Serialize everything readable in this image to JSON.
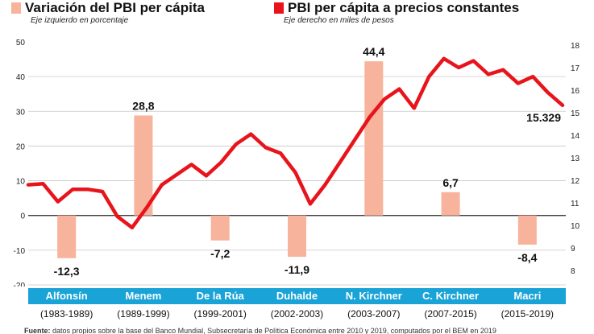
{
  "legend": {
    "left_title": "Variación del PBI per cápita",
    "left_subtitle": "Eje izquierdo en porcentaje",
    "right_title": "PBI per cápita a precios constantes",
    "right_subtitle": "Eje derecho en miles de pesos"
  },
  "colors": {
    "bar": "#f7b39c",
    "line": "#e8141c",
    "band": "#1aa3d6",
    "grid": "#c8c8c8"
  },
  "presidencies": [
    {
      "name": "Alfonsín",
      "period": "(1983-1989)"
    },
    {
      "name": "Menem",
      "period": "(1989-1999)"
    },
    {
      "name": "De la Rúa",
      "period": "(1999-2001)"
    },
    {
      "name": "Duhalde",
      "period": "(2002-2003)"
    },
    {
      "name": "N. Kirchner",
      "period": "(2003-2007)"
    },
    {
      "name": "C. Kirchner",
      "period": "(2007-2015)"
    },
    {
      "name": "Macri",
      "period": "(2015-2019)"
    }
  ],
  "footer": {
    "label": "Fuente:",
    "text": "datos propios sobre la base del Banco Mundial, Subsecretaría de Política Económica entre 2010 y 2019, computados por el BEM en 2019"
  },
  "chart_data": {
    "type": "bar",
    "categories": [
      "Alfonsín",
      "Menem",
      "De la Rúa",
      "Duhalde",
      "N. Kirchner",
      "C. Kirchner",
      "Macri"
    ],
    "bar_labels": [
      "-12,3",
      "28,8",
      "-7,2",
      "-11,9",
      "44,4",
      "6,7",
      "-8,4"
    ],
    "left_axis": {
      "ticks": [
        -20,
        -10,
        0,
        10,
        20,
        30,
        40,
        50
      ],
      "ylim": [
        -20,
        50
      ]
    },
    "right_axis": {
      "ticks": [
        8,
        9,
        10,
        11,
        12,
        13,
        14,
        15,
        16,
        17,
        18
      ],
      "ylim": [
        8,
        18
      ]
    },
    "series": [
      {
        "name": "Variación del PBI per cápita",
        "type": "bar",
        "axis": "left",
        "values": [
          -12.3,
          28.8,
          -7.2,
          -11.9,
          44.4,
          6.7,
          -8.4
        ]
      },
      {
        "name": "PBI per cápita a precios constantes",
        "type": "line",
        "axis": "right",
        "x": [
          1983,
          1984,
          1985,
          1986,
          1987,
          1988,
          1989,
          1990,
          1991,
          1992,
          1993,
          1994,
          1995,
          1996,
          1997,
          1998,
          1999,
          2000,
          2001,
          2002,
          2003,
          2004,
          2005,
          2006,
          2007,
          2008,
          2009,
          2010,
          2011,
          2012,
          2013,
          2014,
          2015,
          2016,
          2017,
          2018,
          2019
        ],
        "values": [
          11.8,
          11.85,
          11.05,
          11.6,
          11.6,
          11.5,
          10.4,
          9.9,
          10.8,
          11.8,
          12.25,
          12.7,
          12.2,
          12.8,
          13.6,
          14.05,
          13.45,
          13.2,
          12.35,
          10.95,
          11.8,
          12.8,
          13.8,
          14.8,
          15.6,
          16.05,
          15.2,
          16.6,
          17.4,
          17.0,
          17.3,
          16.7,
          16.9,
          16.3,
          16.6,
          15.9,
          15.329
        ],
        "end_label": "15.329"
      }
    ]
  }
}
